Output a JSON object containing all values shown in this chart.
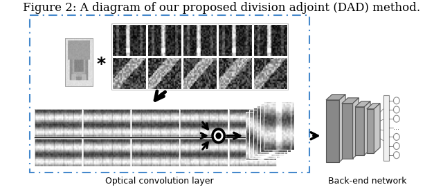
{
  "title": "Figure 2: A diagram of our proposed division adjoint (DAD) method.",
  "title_fontsize": 12,
  "background_color": "#ffffff",
  "border_color": "#4488cc",
  "label_optical": "Optical convolution layer",
  "label_backend": "Back-end network",
  "label_fontsize": 9
}
